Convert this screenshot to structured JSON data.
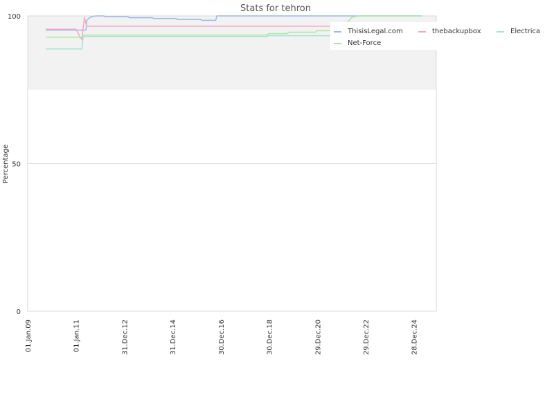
{
  "chart_data": {
    "type": "line",
    "title": "Stats for tehron",
    "xlabel": "",
    "ylabel": "Percentage",
    "ylim": [
      0,
      100
    ],
    "y_ticks": [
      0,
      50,
      100
    ],
    "x_tick_labels": [
      "01.Jan.09",
      "01.Jan.11",
      "31.Dec.12",
      "31.Dec.14",
      "30.Dec.16",
      "30.Dec.18",
      "29.Dec.20",
      "29.Dec.22",
      "28.Dec.24"
    ],
    "x_tick_dates": [
      "2009-01-01",
      "2011-01-01",
      "2012-12-31",
      "2014-12-31",
      "2016-12-30",
      "2018-12-30",
      "2020-12-29",
      "2022-12-29",
      "2024-12-28"
    ],
    "xlim": [
      "2009-01-01",
      "2025-12-01"
    ],
    "grid": true,
    "band": {
      "from": 75,
      "to": 100,
      "color": "#f2f2f2"
    },
    "legend_placement": "top-right",
    "series": [
      {
        "name": "ThisisLegal.com",
        "color": "#9ab8ea",
        "points": [
          [
            "2009-10-01",
            95.2
          ],
          [
            "2011-04-15",
            95.2
          ],
          [
            "2011-06-01",
            95.2
          ],
          [
            "2011-06-15",
            98.5
          ],
          [
            "2011-07-20",
            99.3
          ],
          [
            "2011-09-01",
            99.8
          ],
          [
            "2011-11-01",
            100
          ],
          [
            "2012-03-01",
            100
          ],
          [
            "2012-03-15",
            99.7
          ],
          [
            "2013-03-01",
            99.7
          ],
          [
            "2013-03-15",
            99.4
          ],
          [
            "2014-03-01",
            99.4
          ],
          [
            "2014-03-15",
            99.1
          ],
          [
            "2015-03-01",
            99.1
          ],
          [
            "2015-03-15",
            98.8
          ],
          [
            "2016-03-01",
            98.8
          ],
          [
            "2016-03-15",
            98.5
          ],
          [
            "2016-10-15",
            98.5
          ],
          [
            "2016-10-30",
            100
          ],
          [
            "2025-05-01",
            100
          ]
        ]
      },
      {
        "name": "thebackupbox",
        "color": "#f4a6c4",
        "points": [
          [
            "2009-10-01",
            95.5
          ],
          [
            "2011-01-01",
            95.5
          ],
          [
            "2011-03-01",
            93
          ],
          [
            "2011-04-01",
            92
          ],
          [
            "2011-04-20",
            96
          ],
          [
            "2011-05-10",
            99.5
          ],
          [
            "2011-06-10",
            96.5
          ],
          [
            "2022-06-01",
            96.5
          ]
        ]
      },
      {
        "name": "Electrica",
        "color": "#9fe5d3",
        "points": [
          [
            "2009-10-01",
            88.8
          ],
          [
            "2011-04-01",
            88.8
          ],
          [
            "2011-04-20",
            93
          ],
          [
            "2018-12-01",
            93
          ],
          [
            "2018-12-20",
            93.3
          ],
          [
            "2025-05-01",
            93.3
          ]
        ]
      },
      {
        "name": "Net-Force",
        "color": "#a8e6a0",
        "points": [
          [
            "2009-10-01",
            92.8
          ],
          [
            "2011-01-01",
            92.8
          ],
          [
            "2011-04-01",
            92.8
          ],
          [
            "2011-04-20",
            93.5
          ],
          [
            "2018-12-01",
            93.5
          ],
          [
            "2018-12-20",
            94
          ],
          [
            "2019-10-01",
            94
          ],
          [
            "2019-10-20",
            94.5
          ],
          [
            "2020-12-01",
            94.5
          ],
          [
            "2020-12-20",
            95
          ],
          [
            "2021-10-01",
            95
          ],
          [
            "2022-03-01",
            97
          ],
          [
            "2022-06-01",
            99.5
          ],
          [
            "2022-09-01",
            100
          ],
          [
            "2025-05-01",
            100
          ]
        ]
      }
    ]
  }
}
